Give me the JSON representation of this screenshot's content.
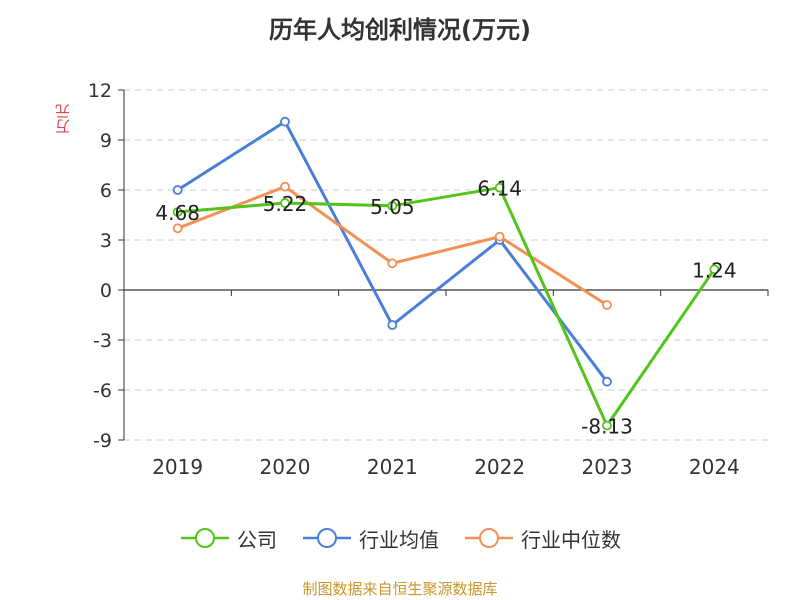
{
  "chart_data": {
    "type": "line",
    "title": "历年人均创利情况(万元)",
    "ylabel": "万元",
    "categories": [
      "2019",
      "2020",
      "2021",
      "2022",
      "2023",
      "2024"
    ],
    "yticks": [
      "12",
      "9",
      "6",
      "3",
      "0",
      "-3",
      "-6",
      "-9"
    ],
    "ylim": [
      -9,
      12
    ],
    "grid": true,
    "legend_position": "bottom",
    "series": [
      {
        "name": "公司",
        "color": "#52c41a",
        "values": [
          4.68,
          5.22,
          5.05,
          6.14,
          -8.13,
          1.24
        ],
        "labels": [
          "4.68",
          "5.22",
          "5.05",
          "6.14",
          "-8.13",
          "1.24"
        ]
      },
      {
        "name": "行业均值",
        "color": "#4a7fd9",
        "values": [
          6.0,
          10.1,
          -2.1,
          3.0,
          -5.5,
          null
        ]
      },
      {
        "name": "行业中位数",
        "color": "#f39055",
        "values": [
          3.7,
          6.2,
          1.6,
          3.2,
          -0.9,
          null
        ]
      }
    ]
  },
  "source": "制图数据来自恒生聚源数据库"
}
